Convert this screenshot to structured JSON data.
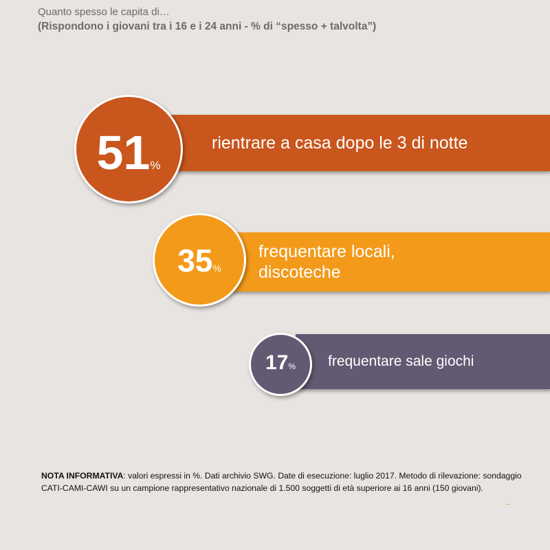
{
  "header": {
    "question": "Quanto spesso le capita di…",
    "base": "(Rispondono i giovani tra i 16 e i 24 anni - % di “spesso + talvolta”)"
  },
  "chart_data": {
    "type": "bar",
    "categories": [
      "rientrare a casa dopo le 3 di notte",
      "frequentare locali, discoteche",
      "frequentare sale giochi"
    ],
    "values": [
      51,
      35,
      17
    ],
    "unit": "%"
  },
  "items": [
    {
      "value": "51",
      "unit": "%",
      "label_lines": [
        "rientrare a casa dopo le 3 di notte"
      ],
      "color": "#c8561d"
    },
    {
      "value": "35",
      "unit": "%",
      "label_lines": [
        "frequentare locali,",
        "discoteche"
      ],
      "color": "#f39a1a"
    },
    {
      "value": "17",
      "unit": "%",
      "label_lines": [
        "frequentare sale giochi"
      ],
      "color": "#625a72"
    }
  ],
  "note": {
    "heading": "NOTA INFORMATIVA",
    "text": ": valori espressi in %. Dati archivio SWG. Date di esecuzione: luglio 2017. Metodo di rilevazione: sondaggio CATI-CAMI-CAWI su un campione rappresentativo nazionale di 1.500 soggetti di età superiore ai 16 anni (150 giovani)."
  }
}
